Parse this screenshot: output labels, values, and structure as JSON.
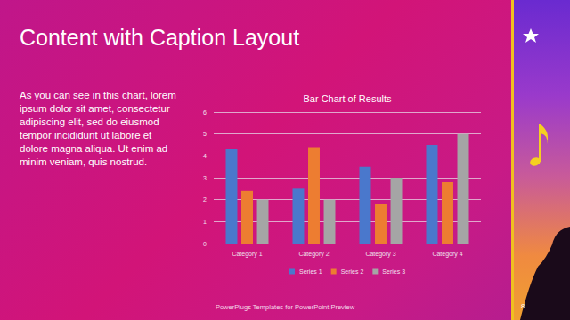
{
  "slide": {
    "title": "Content with Caption Layout",
    "caption_lines": [
      "As you can see in this chart, lorem",
      "ipsum dolor sit amet, consectetur",
      "adipiscing elit, sed do eiusmod",
      "tempor incididunt ut labore et",
      "dolore magna aliqua. Ut enim ad",
      "minim veniam, quis nostrud."
    ],
    "footer": "PowerPlugs Templates for PowerPoint Preview",
    "page": "8"
  },
  "chart_data": {
    "type": "bar",
    "title": "Bar Chart of Results",
    "categories": [
      "Category 1",
      "Category 2",
      "Category 3",
      "Category 4"
    ],
    "series": [
      {
        "name": "Series 1",
        "color": "#4a78cc",
        "values": [
          4.3,
          2.5,
          3.5,
          4.5
        ]
      },
      {
        "name": "Series 2",
        "color": "#ed7d31",
        "values": [
          2.4,
          4.4,
          1.8,
          2.8
        ]
      },
      {
        "name": "Series 3",
        "color": "#a5a5a5",
        "values": [
          2.0,
          2.0,
          3.0,
          5.0
        ]
      }
    ],
    "ylim": [
      0,
      6
    ],
    "yticks": [
      0,
      1,
      2,
      3,
      4,
      5,
      6
    ],
    "grid": true,
    "legend": "bottom"
  }
}
